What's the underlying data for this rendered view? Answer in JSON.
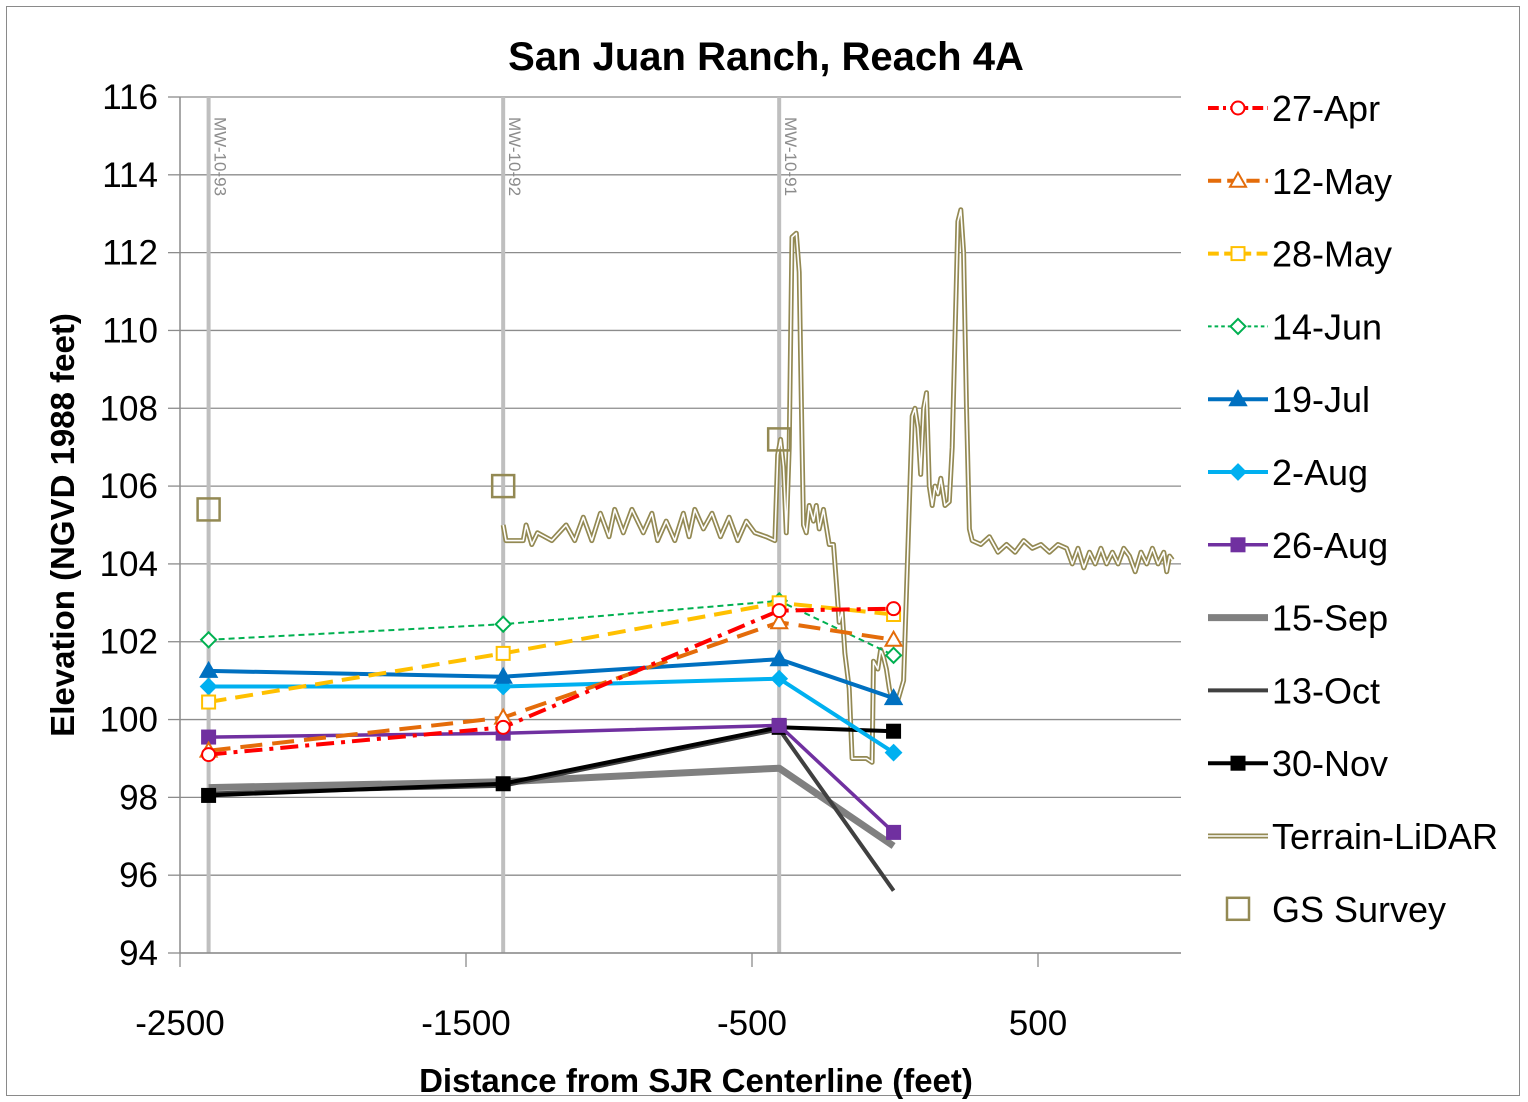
{
  "chart_data": {
    "type": "line",
    "title": "San Juan Ranch, Reach 4A",
    "xlabel": "Distance from SJR Centerline (feet)",
    "ylabel": "Elevation (NGVD 1988 feet)",
    "xlim": [
      -2500,
      1000
    ],
    "ylim": [
      94,
      116
    ],
    "x_ticks": [
      "-2500",
      "-1500",
      "-500",
      "500"
    ],
    "x_tick_values": [
      -2500,
      -1500,
      -500,
      500
    ],
    "y_ticks": [
      "94",
      "96",
      "98",
      "100",
      "102",
      "104",
      "106",
      "108",
      "110",
      "112",
      "114",
      "116"
    ],
    "grid": "horizontal",
    "legend_position": "right",
    "wells": [
      {
        "label": "MW-10-93",
        "x": -2400
      },
      {
        "label": "MW-10-92",
        "x": -1370
      },
      {
        "label": "MW-10-91",
        "x": -405
      }
    ],
    "series": [
      {
        "name": "27-Apr",
        "color": "#ff0000",
        "dash": "18 7 4 7",
        "width": 4,
        "marker": "circle",
        "marker_fill": "none",
        "points": [
          [
            -2400,
            99.1
          ],
          [
            -1370,
            99.8
          ],
          [
            -405,
            102.8
          ],
          [
            -5,
            102.85
          ]
        ]
      },
      {
        "name": "12-May",
        "color": "#e46c0a",
        "dash": "22 10",
        "width": 4,
        "marker": "triangle",
        "marker_fill": "none",
        "points": [
          [
            -2400,
            99.2
          ],
          [
            -1370,
            100.05
          ],
          [
            -405,
            102.5
          ],
          [
            -5,
            102.05
          ]
        ]
      },
      {
        "name": "28-May",
        "color": "#ffc000",
        "dash": "18 9",
        "width": 4,
        "marker": "square",
        "marker_fill": "none",
        "points": [
          [
            -2400,
            100.45
          ],
          [
            -1370,
            101.7
          ],
          [
            -405,
            103.0
          ],
          [
            -5,
            102.7
          ]
        ]
      },
      {
        "name": "14-Jun",
        "color": "#00b050",
        "dash": "6 4",
        "width": 2,
        "marker": "diamond",
        "marker_fill": "none",
        "points": [
          [
            -2400,
            102.05
          ],
          [
            -1370,
            102.45
          ],
          [
            -405,
            103.05
          ],
          [
            -5,
            101.65
          ]
        ]
      },
      {
        "name": "19-Jul",
        "color": "#0070c0",
        "dash": "",
        "width": 4,
        "marker": "triangle",
        "marker_fill": "#0070c0",
        "points": [
          [
            -2400,
            101.25
          ],
          [
            -1370,
            101.1
          ],
          [
            -405,
            101.55
          ],
          [
            -5,
            100.55
          ]
        ]
      },
      {
        "name": "2-Aug",
        "color": "#00b0f0",
        "dash": "",
        "width": 4,
        "marker": "diamond",
        "marker_fill": "#00b0f0",
        "points": [
          [
            -2400,
            100.85
          ],
          [
            -1370,
            100.85
          ],
          [
            -405,
            101.05
          ],
          [
            -5,
            99.15
          ]
        ]
      },
      {
        "name": "26-Aug",
        "color": "#7030a0",
        "dash": "",
        "width": 3.5,
        "marker": "square",
        "marker_fill": "#7030a0",
        "points": [
          [
            -2400,
            99.55
          ],
          [
            -1370,
            99.65
          ],
          [
            -405,
            99.85
          ],
          [
            -5,
            97.1
          ]
        ]
      },
      {
        "name": "15-Sep",
        "color": "#808080",
        "dash": "",
        "width": 7,
        "marker": "none",
        "marker_fill": "none",
        "points": [
          [
            -2400,
            98.25
          ],
          [
            -1370,
            98.4
          ],
          [
            -405,
            98.75
          ],
          [
            -5,
            96.75
          ]
        ]
      },
      {
        "name": "13-Oct",
        "color": "#404040",
        "dash": "",
        "width": 4,
        "marker": "none",
        "marker_fill": "none",
        "points": [
          [
            -2400,
            98.1
          ],
          [
            -1370,
            98.3
          ],
          [
            -405,
            99.75
          ],
          [
            -5,
            95.6
          ]
        ]
      },
      {
        "name": "30-Nov",
        "color": "#000000",
        "dash": "",
        "width": 4,
        "marker": "square",
        "marker_fill": "#000000",
        "points": [
          [
            -2400,
            98.05
          ],
          [
            -1370,
            98.35
          ],
          [
            -405,
            99.8
          ],
          [
            -5,
            99.7
          ]
        ]
      },
      {
        "name": "Terrain-LiDAR",
        "color": "#938953",
        "dash": "",
        "width": 2,
        "marker": "none",
        "marker_fill": "none",
        "style": "double",
        "points": [
          [
            -1370,
            105.0
          ],
          [
            -1360,
            104.6
          ],
          [
            -1300,
            104.6
          ],
          [
            -1290,
            105.0
          ],
          [
            -1270,
            104.5
          ],
          [
            -1250,
            104.8
          ],
          [
            -1200,
            104.6
          ],
          [
            -1150,
            105.0
          ],
          [
            -1120,
            104.6
          ],
          [
            -1090,
            105.2
          ],
          [
            -1060,
            104.6
          ],
          [
            -1030,
            105.3
          ],
          [
            -1000,
            104.7
          ],
          [
            -980,
            105.4
          ],
          [
            -950,
            104.8
          ],
          [
            -920,
            105.4
          ],
          [
            -880,
            104.8
          ],
          [
            -850,
            105.3
          ],
          [
            -830,
            104.6
          ],
          [
            -800,
            105.1
          ],
          [
            -770,
            104.6
          ],
          [
            -740,
            105.3
          ],
          [
            -720,
            104.7
          ],
          [
            -700,
            105.4
          ],
          [
            -670,
            104.9
          ],
          [
            -640,
            105.3
          ],
          [
            -610,
            104.7
          ],
          [
            -580,
            105.2
          ],
          [
            -550,
            104.6
          ],
          [
            -520,
            105.1
          ],
          [
            -490,
            104.8
          ],
          [
            -450,
            104.7
          ],
          [
            -420,
            104.6
          ],
          [
            -410,
            106.8
          ],
          [
            -400,
            107.2
          ],
          [
            -390,
            106.5
          ],
          [
            -380,
            104.8
          ],
          [
            -370,
            107.0
          ],
          [
            -360,
            112.4
          ],
          [
            -345,
            112.5
          ],
          [
            -335,
            111.5
          ],
          [
            -325,
            107.0
          ],
          [
            -320,
            105.0
          ],
          [
            -310,
            104.8
          ],
          [
            -300,
            105.5
          ],
          [
            -285,
            105.1
          ],
          [
            -275,
            105.5
          ],
          [
            -265,
            104.9
          ],
          [
            -250,
            105.4
          ],
          [
            -230,
            104.5
          ],
          [
            -215,
            104.5
          ],
          [
            -205,
            103.5
          ],
          [
            -195,
            102.5
          ],
          [
            -185,
            102.8
          ],
          [
            -175,
            101.7
          ],
          [
            -160,
            100.8
          ],
          [
            -150,
            99.0
          ],
          [
            -100,
            99.0
          ],
          [
            -80,
            98.9
          ],
          [
            -75,
            101.5
          ],
          [
            -60,
            101.3
          ],
          [
            -50,
            101.8
          ],
          [
            -40,
            101.6
          ],
          [
            -30,
            101.3
          ],
          [
            -20,
            100.8
          ],
          [
            -10,
            100.5
          ],
          [
            10,
            100.5
          ],
          [
            30,
            101.0
          ],
          [
            60,
            107.8
          ],
          [
            70,
            108.0
          ],
          [
            80,
            107.5
          ],
          [
            90,
            106.3
          ],
          [
            100,
            108.0
          ],
          [
            110,
            108.4
          ],
          [
            120,
            106.0
          ],
          [
            130,
            105.5
          ],
          [
            140,
            106.0
          ],
          [
            150,
            105.8
          ],
          [
            160,
            106.2
          ],
          [
            175,
            105.5
          ],
          [
            190,
            105.6
          ],
          [
            200,
            107.0
          ],
          [
            220,
            112.8
          ],
          [
            230,
            113.1
          ],
          [
            240,
            112.0
          ],
          [
            250,
            108.0
          ],
          [
            260,
            104.9
          ],
          [
            270,
            104.6
          ],
          [
            300,
            104.5
          ],
          [
            330,
            104.7
          ],
          [
            360,
            104.3
          ],
          [
            390,
            104.5
          ],
          [
            420,
            104.3
          ],
          [
            450,
            104.6
          ],
          [
            480,
            104.4
          ],
          [
            510,
            104.5
          ],
          [
            540,
            104.3
          ],
          [
            570,
            104.5
          ],
          [
            600,
            104.4
          ],
          [
            620,
            104.0
          ],
          [
            640,
            104.4
          ],
          [
            660,
            103.9
          ],
          [
            680,
            104.3
          ],
          [
            700,
            104.0
          ],
          [
            720,
            104.4
          ],
          [
            740,
            104.0
          ],
          [
            760,
            104.3
          ],
          [
            780,
            104.0
          ],
          [
            800,
            104.4
          ],
          [
            820,
            104.2
          ],
          [
            840,
            103.8
          ],
          [
            860,
            104.3
          ],
          [
            880,
            104.0
          ],
          [
            900,
            104.4
          ],
          [
            920,
            104.0
          ],
          [
            940,
            104.3
          ],
          [
            950,
            103.8
          ],
          [
            960,
            104.2
          ],
          [
            970,
            104.1
          ]
        ]
      },
      {
        "name": "GS Survey",
        "color": "#938953",
        "dash": "",
        "width": 0,
        "marker": "square-large",
        "marker_fill": "none",
        "points": [
          [
            -2400,
            105.4
          ],
          [
            -1370,
            106.0
          ],
          [
            -405,
            107.2
          ]
        ]
      }
    ]
  }
}
